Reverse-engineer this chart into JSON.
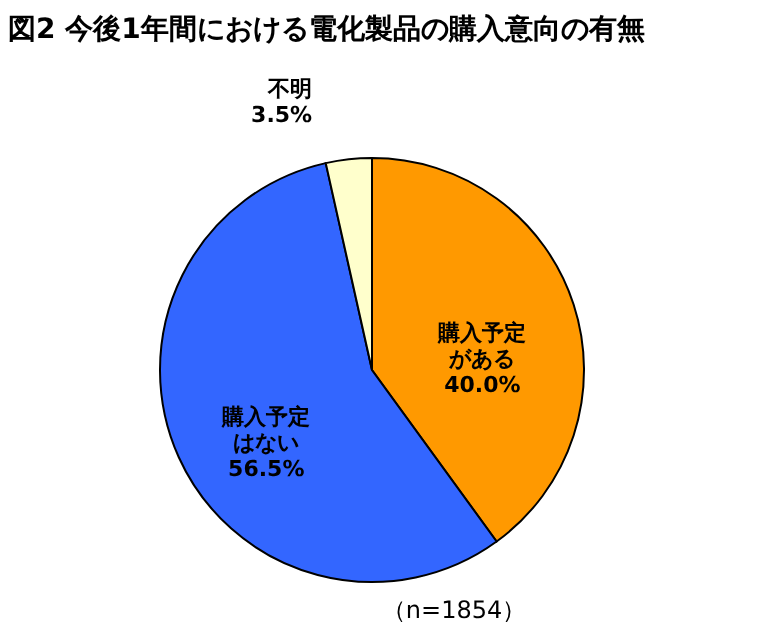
{
  "chart_data": {
    "type": "pie",
    "title": "図2 今後1年間における電化製品の購入意向の有無",
    "categories": [
      "購入予定がある",
      "購入予定はない",
      "不明"
    ],
    "values": [
      40.0,
      56.5,
      3.5
    ],
    "value_labels": [
      "40.0%",
      "56.5%",
      "3.5%"
    ],
    "colors": [
      "#ff9900",
      "#3366ff",
      "#ffffcc"
    ],
    "annotations": [
      "（n=1854）"
    ]
  }
}
